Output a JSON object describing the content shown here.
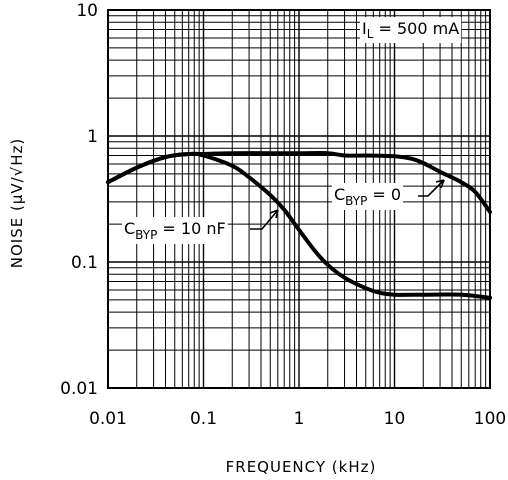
{
  "chart_data": {
    "type": "line",
    "xscale": "log",
    "yscale": "log",
    "xlim": [
      0.01,
      100
    ],
    "ylim": [
      0.01,
      10
    ],
    "grid": true,
    "xlabel": "FREQUENCY (kHz)",
    "ylabel": "NOISE (µV/√Hz)",
    "xticks": [
      {
        "value": 0.01,
        "label": "0.01"
      },
      {
        "value": 0.1,
        "label": "0.1"
      },
      {
        "value": 1,
        "label": "1"
      },
      {
        "value": 10,
        "label": "10"
      },
      {
        "value": 100,
        "label": "100"
      }
    ],
    "yticks": [
      {
        "value": 10,
        "label": "10"
      },
      {
        "value": 1,
        "label": "1"
      },
      {
        "value": 0.1,
        "label": "0.1"
      },
      {
        "value": 0.01,
        "label": "0.01"
      }
    ],
    "series": [
      {
        "name": "CBYP = 0",
        "x": [
          0.01,
          0.02,
          0.04,
          0.07,
          0.1,
          0.2,
          0.5,
          1,
          2,
          3,
          5,
          10,
          15,
          20,
          30,
          50,
          70,
          100
        ],
        "y": [
          0.43,
          0.56,
          0.68,
          0.72,
          0.72,
          0.73,
          0.73,
          0.73,
          0.73,
          0.7,
          0.7,
          0.69,
          0.66,
          0.61,
          0.52,
          0.43,
          0.36,
          0.25
        ]
      },
      {
        "name": "CBYP = 10 nF",
        "x": [
          0.01,
          0.02,
          0.04,
          0.07,
          0.1,
          0.2,
          0.3,
          0.5,
          0.7,
          1,
          1.5,
          2,
          3,
          5,
          7,
          10,
          20,
          50,
          100
        ],
        "y": [
          0.43,
          0.56,
          0.68,
          0.72,
          0.7,
          0.58,
          0.47,
          0.34,
          0.26,
          0.18,
          0.12,
          0.095,
          0.075,
          0.062,
          0.057,
          0.055,
          0.055,
          0.055,
          0.052
        ]
      }
    ],
    "annotations": [
      {
        "label": "I",
        "sub": "L",
        "rest": " = 500 mA"
      },
      {
        "label": "C",
        "sub": "BYP",
        "rest": " = 0"
      },
      {
        "label": "C",
        "sub": "BYP",
        "rest": " = 10 nF"
      }
    ]
  }
}
